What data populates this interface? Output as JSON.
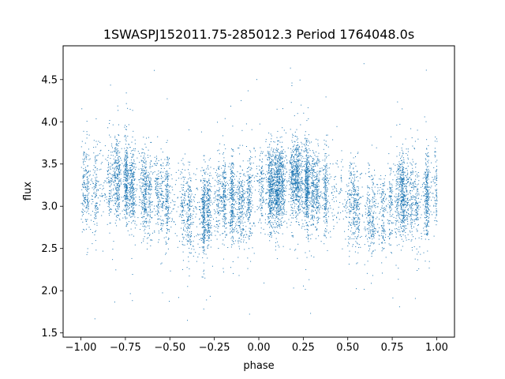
{
  "chart_data": {
    "type": "scatter",
    "title": "1SWASPJ152011.75-285012.3 Period 1764048.0s",
    "xlabel": "phase",
    "ylabel": "flux",
    "xlim": [
      -1.1,
      1.1
    ],
    "ylim": [
      1.45,
      4.9
    ],
    "x_ticks": [
      -1.0,
      -0.75,
      -0.5,
      -0.25,
      0.0,
      0.25,
      0.5,
      0.75,
      1.0
    ],
    "x_tick_labels": [
      "−1.00",
      "−0.75",
      "−0.50",
      "−0.25",
      "0.00",
      "0.25",
      "0.50",
      "0.75",
      "1.00"
    ],
    "y_ticks": [
      1.5,
      2.0,
      2.5,
      3.0,
      3.5,
      4.0,
      4.5
    ],
    "y_tick_labels": [
      "1.5",
      "2.0",
      "2.5",
      "3.0",
      "3.5",
      "4.0",
      "4.5"
    ],
    "grid": false,
    "marker_color": "#1f77b4",
    "series": [
      {
        "x_range": [
          -1.0,
          1.0
        ],
        "mean_flux_profile": [
          {
            "phase": -1.0,
            "flux": 3.25
          },
          {
            "phase": -0.9,
            "flux": 3.2
          },
          {
            "phase": -0.8,
            "flux": 3.35
          },
          {
            "phase": -0.7,
            "flux": 3.2
          },
          {
            "phase": -0.6,
            "flux": 3.15
          },
          {
            "phase": -0.5,
            "flux": 3.05
          },
          {
            "phase": -0.4,
            "flux": 2.9
          },
          {
            "phase": -0.3,
            "flux": 2.9
          },
          {
            "phase": -0.2,
            "flux": 3.15
          },
          {
            "phase": -0.1,
            "flux": 3.0
          },
          {
            "phase": 0.0,
            "flux": 3.25
          },
          {
            "phase": 0.1,
            "flux": 3.2
          },
          {
            "phase": 0.2,
            "flux": 3.35
          },
          {
            "phase": 0.3,
            "flux": 3.2
          },
          {
            "phase": 0.4,
            "flux": 3.15
          },
          {
            "phase": 0.5,
            "flux": 3.05
          },
          {
            "phase": 0.6,
            "flux": 2.9
          },
          {
            "phase": 0.7,
            "flux": 2.9
          },
          {
            "phase": 0.8,
            "flux": 3.15
          },
          {
            "phase": 0.9,
            "flux": 3.0
          },
          {
            "phase": 1.0,
            "flux": 3.25
          }
        ],
        "typical_scatter": 0.25,
        "flux_extent": [
          1.6,
          4.75
        ]
      }
    ]
  }
}
